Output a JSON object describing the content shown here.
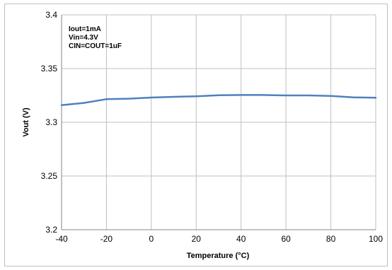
{
  "chart_data": {
    "type": "line",
    "title": "",
    "xlabel": "Temperature (°C)",
    "ylabel": "Vout (V)",
    "xlim": [
      -40,
      100
    ],
    "ylim": [
      3.2,
      3.4
    ],
    "x_ticks": [
      "-40",
      "-20",
      "0",
      "20",
      "40",
      "60",
      "80",
      "100"
    ],
    "y_ticks": [
      "3.2",
      "3.25",
      "3.3",
      "3.35",
      "3.4"
    ],
    "grid": true,
    "annotations": [
      "Iout=1mA",
      "Vin=4.3V",
      "CIN=COUT=1uF"
    ],
    "series": [
      {
        "color": "#4f81bd",
        "x": [
          -40,
          -30,
          -20,
          -10,
          0,
          10,
          20,
          30,
          40,
          50,
          60,
          70,
          80,
          90,
          100
        ],
        "y": [
          3.316,
          3.318,
          3.3215,
          3.322,
          3.323,
          3.3237,
          3.3242,
          3.3252,
          3.3254,
          3.3254,
          3.325,
          3.325,
          3.3245,
          3.3232,
          3.3228
        ]
      }
    ]
  }
}
